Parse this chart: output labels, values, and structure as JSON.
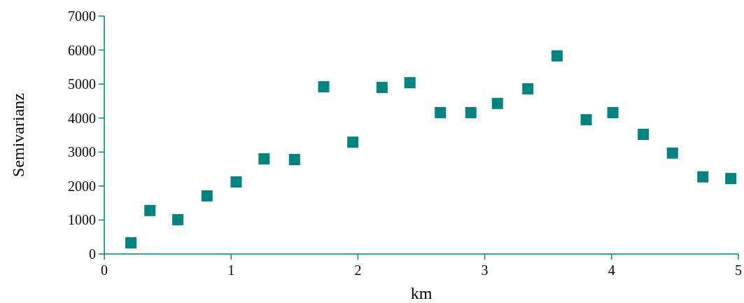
{
  "chart_data": {
    "type": "scatter",
    "xlabel": "km",
    "ylabel": "Semivarianz",
    "marker": "square",
    "grid": false,
    "xlim": [
      0,
      5
    ],
    "xticks": [
      0,
      1,
      2,
      3,
      4,
      5
    ],
    "ylim": [
      0,
      7000
    ],
    "yticks": [
      0,
      1000,
      2000,
      3000,
      4000,
      5000,
      6000,
      7000
    ],
    "series": [
      {
        "color": "#008580",
        "x": [
          0.21,
          0.36,
          0.58,
          0.81,
          1.04,
          1.26,
          1.5,
          1.73,
          1.96,
          2.19,
          2.41,
          2.65,
          2.89,
          3.1,
          3.34,
          3.57,
          3.8,
          4.01,
          4.25,
          4.48,
          4.72,
          4.94
        ],
        "values": [
          330,
          1280,
          1010,
          1710,
          2120,
          2800,
          2780,
          4920,
          3290,
          4900,
          5040,
          4160,
          4160,
          4430,
          4860,
          5830,
          3950,
          4160,
          3520,
          2970,
          2270,
          2220
        ]
      }
    ]
  }
}
